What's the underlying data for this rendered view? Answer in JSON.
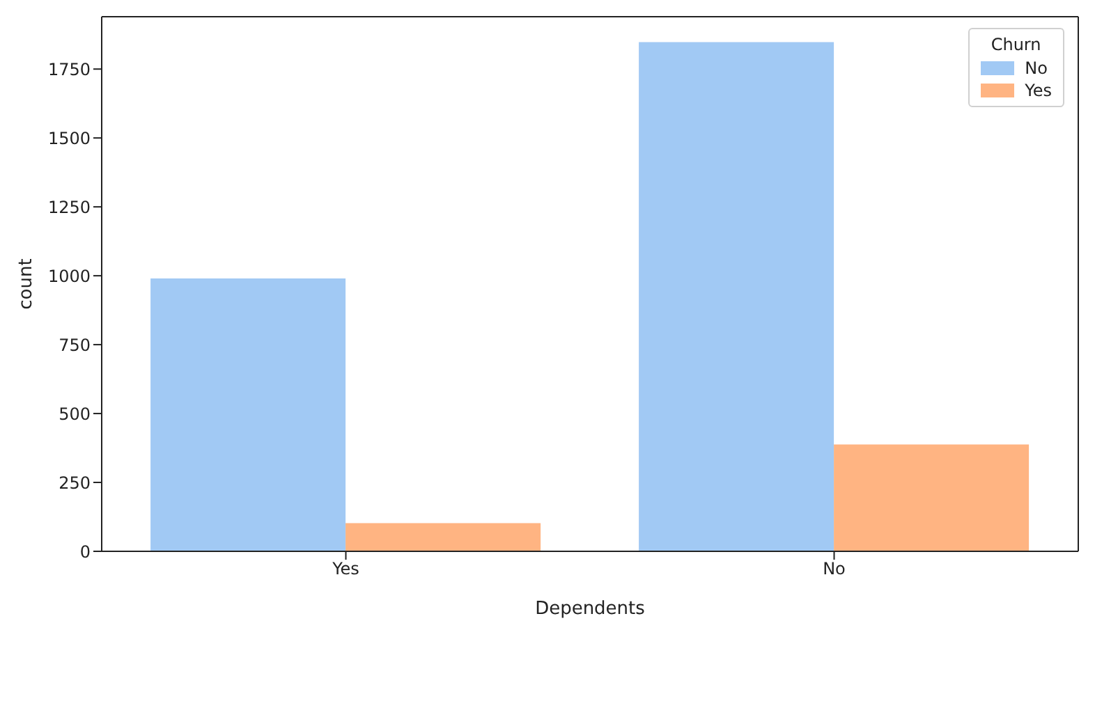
{
  "chart_data": {
    "type": "bar",
    "xlabel": "Dependents",
    "ylabel": "count",
    "legend_title": "Churn",
    "categories": [
      "Yes",
      "No"
    ],
    "series": [
      {
        "name": "No",
        "color": "#a1c9f4",
        "values": [
          990,
          1848
        ]
      },
      {
        "name": "Yes",
        "color": "#ffb482",
        "values": [
          102,
          388
        ]
      }
    ],
    "ylim": [
      0,
      1940
    ],
    "yticks": [
      0,
      250,
      500,
      750,
      1000,
      1250,
      1500,
      1750
    ],
    "grid": false,
    "legend": "top right"
  }
}
